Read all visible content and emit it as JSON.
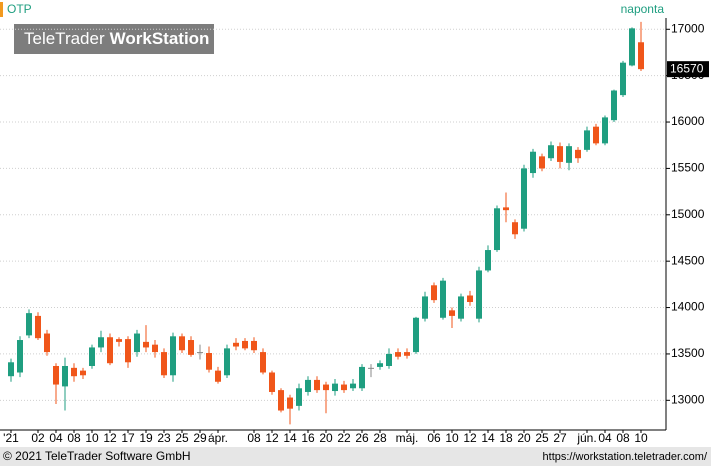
{
  "chart_data": {
    "type": "candlestick",
    "title": "OTP",
    "frequency": "naponta",
    "watermark": {
      "brand": "TeleTrader",
      "product": "WorkStation"
    },
    "footer": {
      "copyright": "© 2021  TeleTrader Software GmbH",
      "url": "https://workstation.teletrader.com/"
    },
    "last_value": 16570,
    "up_color": "#1f9e80",
    "down_color": "#f0561a",
    "flat_color": "#888888",
    "grid": true,
    "categories": [
      "'21",
      null,
      null,
      "02",
      null,
      "04",
      null,
      "08",
      null,
      "10",
      null,
      "12",
      null,
      "17",
      null,
      "19",
      null,
      "23",
      null,
      "25",
      null,
      "29",
      null,
      "ápr.",
      null,
      null,
      null,
      "08",
      null,
      "12",
      null,
      "14",
      null,
      "16",
      null,
      "20",
      null,
      "22",
      null,
      "26",
      null,
      "28",
      null,
      null,
      "máj.",
      null,
      null,
      "06",
      null,
      "10",
      null,
      "12",
      null,
      "14",
      null,
      "18",
      null,
      "20",
      null,
      "25",
      null,
      "27",
      null,
      null,
      "jún.",
      null,
      "04",
      null,
      "08",
      null,
      "10"
    ],
    "open": [
      13260,
      13300,
      13700,
      13910,
      13720,
      13370,
      13150,
      13350,
      13320,
      13370,
      13570,
      13680,
      13660,
      13660,
      13520,
      13630,
      13600,
      13520,
      13270,
      13690,
      13650,
      13520,
      13510,
      13320,
      13270,
      13620,
      13640,
      13640,
      13520,
      13300,
      13110,
      13030,
      12940,
      13090,
      13220,
      13170,
      13100,
      13170,
      13130,
      13130,
      13350,
      13360,
      13370,
      13520,
      13520,
      13520,
      13880,
      14240,
      13890,
      13970,
      13880,
      14130,
      13880,
      14400,
      14620,
      15080,
      14920,
      14850,
      15450,
      15630,
      15610,
      15740,
      15560,
      15700,
      15700,
      15950,
      15770,
      16020,
      16290,
      16610,
      16860
    ],
    "high": [
      13450,
      13690,
      13980,
      13950,
      13760,
      13400,
      13460,
      13400,
      13350,
      13600,
      13750,
      13720,
      13680,
      13690,
      13760,
      13810,
      13650,
      13560,
      13730,
      13720,
      13690,
      13600,
      13580,
      13360,
      13600,
      13670,
      13670,
      13680,
      13560,
      13320,
      13130,
      13060,
      13180,
      13260,
      13260,
      13200,
      13230,
      13210,
      13230,
      13390,
      13390,
      13430,
      13560,
      13560,
      13560,
      13900,
      14170,
      14270,
      14320,
      14000,
      14150,
      14180,
      14440,
      14670,
      15100,
      15240,
      14950,
      15540,
      15710,
      15660,
      15790,
      15780,
      15770,
      15730,
      15950,
      15980,
      16070,
      16350,
      16660,
      17020,
      17080
    ],
    "low": [
      13200,
      13250,
      13670,
      13650,
      13480,
      12960,
      12890,
      13200,
      13230,
      13340,
      13520,
      13380,
      13580,
      13350,
      13470,
      13520,
      13460,
      13240,
      13200,
      13510,
      13470,
      13440,
      13300,
      13180,
      13240,
      13540,
      13540,
      13510,
      13280,
      13060,
      12870,
      12740,
      12890,
      13050,
      13080,
      12860,
      13050,
      13080,
      13100,
      13100,
      13250,
      13330,
      13340,
      13440,
      13450,
      13500,
      13850,
      14050,
      13870,
      13780,
      13850,
      14020,
      13840,
      14380,
      14600,
      14920,
      14740,
      14820,
      15400,
      15470,
      15580,
      15500,
      15480,
      15560,
      15680,
      15750,
      15750,
      16000,
      16270,
      16600,
      16550
    ],
    "close": [
      13410,
      13650,
      13940,
      13670,
      13520,
      13170,
      13370,
      13260,
      13270,
      13570,
      13680,
      13400,
      13630,
      13410,
      13720,
      13570,
      13520,
      13270,
      13690,
      13540,
      13490,
      13520,
      13330,
      13200,
      13560,
      13580,
      13560,
      13540,
      13300,
      13090,
      12890,
      12910,
      13130,
      13220,
      13110,
      13110,
      13180,
      13110,
      13180,
      13360,
      13350,
      13400,
      13500,
      13470,
      13480,
      13890,
      14120,
      14080,
      14290,
      13910,
      14120,
      14060,
      14400,
      14620,
      15070,
      15050,
      14790,
      15500,
      15680,
      15500,
      15750,
      15570,
      15740,
      15610,
      15910,
      15770,
      16050,
      16340,
      16640,
      17010,
      16570
    ],
    "ylim": [
      12680,
      17100
    ],
    "yticks": [
      13000,
      13500,
      14000,
      14500,
      15000,
      15500,
      16000,
      16500,
      17000
    ]
  }
}
